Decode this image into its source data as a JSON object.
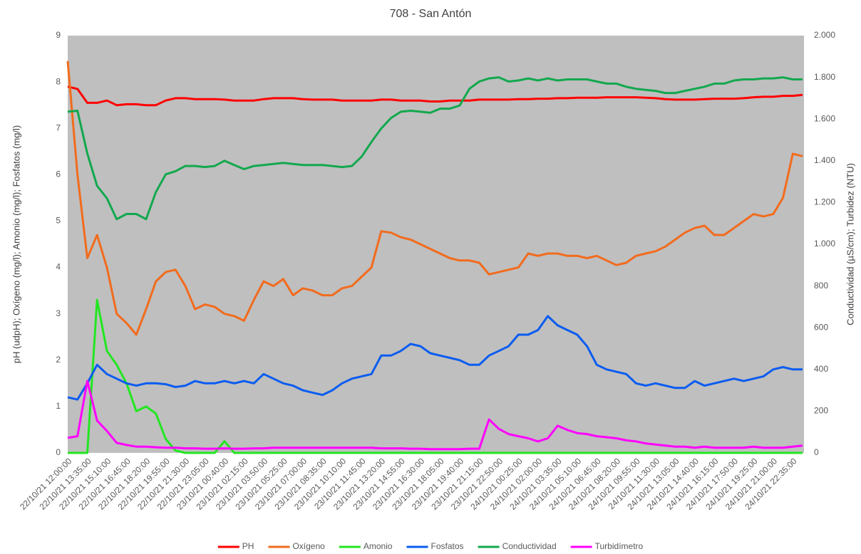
{
  "chart_data": {
    "type": "line",
    "title": "708 - San Antón",
    "y_label": "pH (udpH); Oxígeno (mg/l); Amonio (mg/l); Fosfatos (mg/l)",
    "y2_label": "Conductividad (µS/cm); Turbidez (NTU)",
    "categories": [
      "22/10/21 12:00:00",
      null,
      "22/10/21 13:35:00",
      null,
      "22/10/21 15:10:00",
      null,
      "22/10/21 16:45:00",
      null,
      "22/10/21 18:20:00",
      null,
      "22/10/21 19:55:00",
      null,
      "22/10/21 21:30:00",
      null,
      "22/10/21 23:05:00",
      null,
      "23/10/21 00:40:00",
      null,
      "23/10/21 02:15:00",
      null,
      "23/10/21 03:50:00",
      null,
      "23/10/21 05:25:00",
      null,
      "23/10/21 07:00:00",
      null,
      "23/10/21 08:35:00",
      null,
      "23/10/21 10:10:00",
      null,
      "23/10/21 11:45:00",
      null,
      "23/10/21 13:20:00",
      null,
      "23/10/21 14:55:00",
      null,
      "23/10/21 16:30:00",
      null,
      "23/10/21 18:05:00",
      null,
      "23/10/21 19:40:00",
      null,
      "23/10/21 21:15:00",
      null,
      "23/10/21 22:50:00",
      null,
      "24/10/21 00:25:00",
      null,
      "24/10/21 02:00:00",
      null,
      "24/10/21 03:35:00",
      null,
      "24/10/21 05:10:00",
      null,
      "24/10/21 06:45:00",
      null,
      "24/10/21 08:20:00",
      null,
      "24/10/21 09:55:00",
      null,
      "24/10/21 11:30:00",
      null,
      "24/10/21 13:05:00",
      null,
      "24/10/21 14:40:00",
      null,
      "24/10/21 16:15:00",
      null,
      "24/10/21 17:50:00",
      null,
      "24/10/21 19:25:00",
      null,
      "24/10/21 21:00:00",
      null,
      "24/10/21 22:35:00",
      null
    ],
    "ylim": [
      0,
      9
    ],
    "yticks": [
      0,
      1,
      2,
      3,
      4,
      5,
      6,
      7,
      8,
      9
    ],
    "y2lim": [
      0,
      2000
    ],
    "y2ticks": [
      0,
      200,
      400,
      600,
      800,
      {
        "value": 1000,
        "label": "1.000"
      },
      {
        "value": 1200,
        "label": "1.200"
      },
      {
        "value": 1400,
        "label": "1.400"
      },
      {
        "value": 1600,
        "label": "1.600"
      },
      {
        "value": 1800,
        "label": "1.800"
      },
      {
        "value": 2000,
        "label": "2.000"
      }
    ],
    "grid": false,
    "legend": "bottom",
    "series": [
      {
        "name": "PH",
        "color": "#ff0000",
        "values": [
          7.9,
          7.85,
          7.55,
          7.55,
          7.6,
          7.5,
          7.52,
          7.52,
          7.5,
          7.5,
          7.6,
          7.65,
          7.65,
          7.63,
          7.63,
          7.63,
          7.62,
          7.6,
          7.6,
          7.6,
          7.63,
          7.65,
          7.65,
          7.65,
          7.63,
          7.62,
          7.62,
          7.62,
          7.6,
          7.6,
          7.6,
          7.6,
          7.62,
          7.62,
          7.6,
          7.6,
          7.6,
          7.58,
          7.58,
          7.6,
          7.6,
          7.6,
          7.62,
          7.62,
          7.62,
          7.62,
          7.63,
          7.63,
          7.64,
          7.64,
          7.65,
          7.65,
          7.66,
          7.66,
          7.66,
          7.67,
          7.67,
          7.67,
          7.67,
          7.66,
          7.65,
          7.63,
          7.62,
          7.62,
          7.62,
          7.63,
          7.64,
          7.64,
          7.64,
          7.65,
          7.67,
          7.68,
          7.68,
          7.7,
          7.7,
          7.72
        ]
      },
      {
        "name": "Oxígeno",
        "color": "#f26b1d",
        "values": [
          8.45,
          6.0,
          4.2,
          4.7,
          4.0,
          3.0,
          2.8,
          2.55,
          3.1,
          3.7,
          3.9,
          3.95,
          3.6,
          3.1,
          3.2,
          3.15,
          3.0,
          2.95,
          2.85,
          3.3,
          3.7,
          3.6,
          3.75,
          3.4,
          3.55,
          3.5,
          3.4,
          3.4,
          3.55,
          3.6,
          3.8,
          4.0,
          4.78,
          4.75,
          4.65,
          4.6,
          4.5,
          4.4,
          4.3,
          4.2,
          4.15,
          4.15,
          4.1,
          3.85,
          3.9,
          3.95,
          4.0,
          4.3,
          4.25,
          4.3,
          4.3,
          4.25,
          4.25,
          4.2,
          4.25,
          4.15,
          4.05,
          4.1,
          4.25,
          4.3,
          4.35,
          4.45,
          4.6,
          4.75,
          4.85,
          4.9,
          4.7,
          4.7,
          4.85,
          5.0,
          5.15,
          5.1,
          5.15,
          5.5,
          6.45,
          6.4
        ]
      },
      {
        "name": "Amonio",
        "color": "#22e622",
        "values": [
          0,
          0,
          0,
          3.3,
          2.2,
          1.9,
          1.5,
          0.9,
          1.0,
          0.85,
          0.3,
          0.05,
          0,
          0,
          0,
          0,
          0.25,
          0,
          0,
          0,
          0,
          0,
          0,
          0,
          0,
          0,
          0,
          0,
          0,
          0,
          0,
          0,
          0,
          0,
          0,
          0,
          0,
          0,
          0,
          0,
          0,
          0,
          0,
          0,
          0,
          0,
          0,
          0,
          0,
          0,
          0,
          0,
          0,
          0,
          0,
          0,
          0,
          0,
          0,
          0,
          0,
          0,
          0,
          0,
          0,
          0,
          0,
          0,
          0,
          0,
          0,
          0,
          0,
          0,
          0,
          0
        ]
      },
      {
        "name": "Fosfatos",
        "color": "#0a5cf0",
        "values": [
          1.2,
          1.15,
          1.5,
          1.9,
          1.7,
          1.6,
          1.5,
          1.45,
          1.5,
          1.5,
          1.48,
          1.42,
          1.45,
          1.55,
          1.5,
          1.5,
          1.55,
          1.5,
          1.55,
          1.5,
          1.7,
          1.6,
          1.5,
          1.45,
          1.35,
          1.3,
          1.25,
          1.35,
          1.5,
          1.6,
          1.65,
          1.7,
          2.1,
          2.1,
          2.2,
          2.35,
          2.3,
          2.15,
          2.1,
          2.05,
          2.0,
          1.9,
          1.9,
          2.1,
          2.2,
          2.3,
          2.55,
          2.55,
          2.65,
          2.95,
          2.75,
          2.65,
          2.55,
          2.3,
          1.9,
          1.8,
          1.75,
          1.7,
          1.5,
          1.45,
          1.5,
          1.45,
          1.4,
          1.4,
          1.55,
          1.45,
          1.5,
          1.55,
          1.6,
          1.55,
          1.6,
          1.65,
          1.8,
          1.85,
          1.8,
          1.8
        ]
      },
      {
        "name": "Conductividad",
        "color": "#12a84e",
        "axis": "y2",
        "values": [
          1635,
          1640,
          1435,
          1280,
          1220,
          1120,
          1145,
          1145,
          1120,
          1250,
          1335,
          1350,
          1375,
          1375,
          1370,
          1375,
          1400,
          1380,
          1360,
          1375,
          1380,
          1385,
          1390,
          1385,
          1380,
          1380,
          1380,
          1375,
          1370,
          1375,
          1420,
          1490,
          1555,
          1605,
          1635,
          1640,
          1635,
          1630,
          1650,
          1650,
          1665,
          1745,
          1780,
          1795,
          1800,
          1780,
          1785,
          1795,
          1785,
          1795,
          1785,
          1790,
          1790,
          1790,
          1780,
          1770,
          1770,
          1755,
          1745,
          1740,
          1735,
          1725,
          1725,
          1735,
          1745,
          1755,
          1770,
          1770,
          1785,
          1790,
          1790,
          1795,
          1795,
          1800,
          1790,
          1790
        ]
      },
      {
        "name": "Turbidímetro",
        "color": "#ff00ff",
        "axis": "y2",
        "values": [
          72,
          80,
          345,
          155,
          105,
          48,
          38,
          30,
          30,
          27,
          25,
          25,
          22,
          22,
          20,
          20,
          22,
          20,
          20,
          22,
          22,
          25,
          25,
          25,
          25,
          25,
          25,
          25,
          25,
          25,
          25,
          25,
          22,
          22,
          22,
          20,
          20,
          18,
          18,
          18,
          18,
          20,
          20,
          160,
          115,
          90,
          80,
          70,
          55,
          70,
          130,
          110,
          95,
          90,
          80,
          75,
          70,
          60,
          55,
          45,
          40,
          35,
          30,
          30,
          25,
          30,
          25,
          25,
          25,
          25,
          30,
          25,
          25,
          25,
          30,
          35
        ]
      }
    ]
  }
}
